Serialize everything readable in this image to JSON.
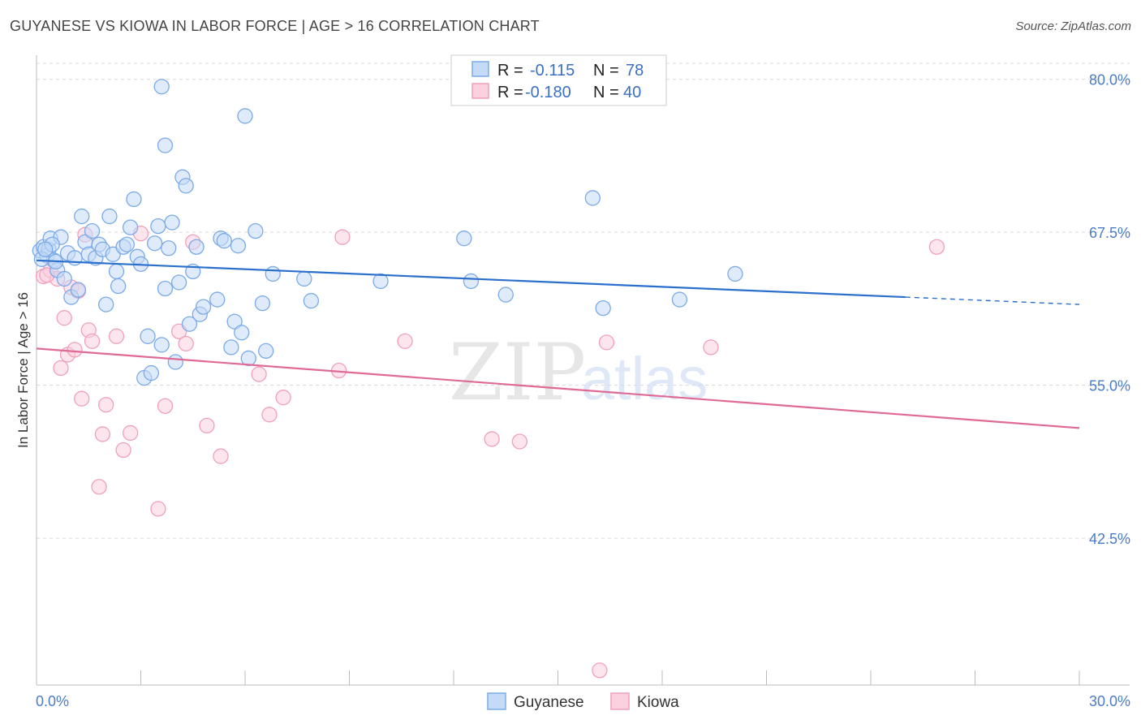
{
  "header": {
    "title": "GUYANESE VS KIOWA IN LABOR FORCE | AGE > 16 CORRELATION CHART",
    "source": "Source: ZipAtlas.com"
  },
  "watermark": {
    "zip": "ZIP",
    "atlas": "atlas"
  },
  "legend": {
    "rows": [
      {
        "r_label": "R =",
        "r_value": "-0.115",
        "n_label": "N =",
        "n_value": "78"
      },
      {
        "r_label": "R =",
        "r_value": "-0.180",
        "n_label": "N =",
        "n_value": "40"
      }
    ]
  },
  "chart_data": {
    "type": "scatter",
    "xlabel": "",
    "ylabel": "In Labor Force | Age > 16",
    "xlim": [
      0,
      30
    ],
    "ylim": [
      30.5,
      82.5
    ],
    "x_tick_labels": [
      "0.0%",
      "30.0%"
    ],
    "y_ticks": [
      42.5,
      55.0,
      67.5,
      80.0
    ],
    "y_tick_labels": [
      "42.5%",
      "55.0%",
      "67.5%",
      "80.0%"
    ],
    "grid": true,
    "colors": {
      "Guyanese": "#7aaae8",
      "Kiowa": "#f0a0bb",
      "guyanese_line": "#2a6fcc",
      "kiowa_line": "#e06a96"
    },
    "series": [
      {
        "name": "Guyanese",
        "trend": {
          "x0": 0,
          "y0": 65.2,
          "x1": 25,
          "y1": 62.2,
          "x_dash_end": 30,
          "y_dash_end": 61.6
        },
        "points": [
          [
            0.1,
            66.0
          ],
          [
            0.2,
            66.3
          ],
          [
            0.3,
            65.6
          ],
          [
            0.35,
            66.1
          ],
          [
            0.4,
            67.0
          ],
          [
            0.5,
            65.2
          ],
          [
            0.6,
            64.4
          ],
          [
            0.7,
            67.1
          ],
          [
            0.8,
            63.7
          ],
          [
            0.9,
            65.8
          ],
          [
            1.0,
            62.2
          ],
          [
            1.1,
            65.4
          ],
          [
            1.2,
            62.8
          ],
          [
            1.3,
            68.8
          ],
          [
            1.4,
            66.7
          ],
          [
            1.5,
            65.7
          ],
          [
            1.6,
            67.6
          ],
          [
            1.7,
            65.4
          ],
          [
            1.8,
            66.5
          ],
          [
            1.9,
            66.1
          ],
          [
            2.0,
            61.6
          ],
          [
            2.1,
            68.8
          ],
          [
            2.2,
            65.7
          ],
          [
            2.3,
            64.3
          ],
          [
            2.35,
            63.1
          ],
          [
            2.5,
            66.3
          ],
          [
            2.6,
            66.5
          ],
          [
            2.7,
            67.9
          ],
          [
            2.8,
            70.2
          ],
          [
            2.9,
            65.5
          ],
          [
            3.0,
            64.9
          ],
          [
            3.1,
            55.6
          ],
          [
            3.2,
            59.0
          ],
          [
            3.3,
            56.0
          ],
          [
            3.4,
            66.6
          ],
          [
            3.5,
            68.0
          ],
          [
            3.6,
            58.3
          ],
          [
            3.7,
            62.9
          ],
          [
            3.8,
            66.2
          ],
          [
            3.9,
            68.3
          ],
          [
            3.6,
            79.4
          ],
          [
            3.7,
            74.6
          ],
          [
            4.0,
            56.9
          ],
          [
            4.1,
            63.4
          ],
          [
            4.2,
            72.0
          ],
          [
            4.3,
            71.3
          ],
          [
            4.4,
            60.0
          ],
          [
            4.5,
            64.3
          ],
          [
            4.6,
            66.3
          ],
          [
            4.7,
            60.8
          ],
          [
            4.8,
            61.4
          ],
          [
            5.2,
            62.0
          ],
          [
            5.3,
            67.0
          ],
          [
            5.4,
            66.8
          ],
          [
            5.6,
            58.1
          ],
          [
            5.7,
            60.2
          ],
          [
            5.8,
            66.4
          ],
          [
            5.9,
            59.3
          ],
          [
            6.0,
            77.0
          ],
          [
            6.1,
            57.2
          ],
          [
            6.3,
            67.6
          ],
          [
            6.5,
            61.7
          ],
          [
            6.6,
            57.8
          ],
          [
            6.8,
            64.1
          ],
          [
            7.7,
            63.7
          ],
          [
            7.9,
            61.9
          ],
          [
            9.9,
            63.5
          ],
          [
            12.3,
            67.0
          ],
          [
            12.5,
            63.5
          ],
          [
            13.5,
            62.4
          ],
          [
            16.0,
            70.3
          ],
          [
            16.3,
            61.3
          ],
          [
            18.5,
            62.0
          ],
          [
            20.1,
            64.1
          ],
          [
            0.15,
            65.3
          ],
          [
            0.45,
            66.5
          ],
          [
            0.55,
            65.1
          ],
          [
            0.25,
            66.1
          ]
        ]
      },
      {
        "name": "Kiowa",
        "trend": {
          "x0": 0,
          "y0": 58.0,
          "x1": 30,
          "y1": 51.5
        },
        "points": [
          [
            0.2,
            63.9
          ],
          [
            0.4,
            64.4
          ],
          [
            0.6,
            63.7
          ],
          [
            0.7,
            56.4
          ],
          [
            0.8,
            60.5
          ],
          [
            0.9,
            57.5
          ],
          [
            1.0,
            63.0
          ],
          [
            1.1,
            57.9
          ],
          [
            1.2,
            62.7
          ],
          [
            1.3,
            53.9
          ],
          [
            1.4,
            67.3
          ],
          [
            1.5,
            59.5
          ],
          [
            1.6,
            58.6
          ],
          [
            1.8,
            46.7
          ],
          [
            1.9,
            51.0
          ],
          [
            2.0,
            53.4
          ],
          [
            2.3,
            59.0
          ],
          [
            2.5,
            49.7
          ],
          [
            2.7,
            51.1
          ],
          [
            3.0,
            67.4
          ],
          [
            3.5,
            44.9
          ],
          [
            3.7,
            53.3
          ],
          [
            4.1,
            59.4
          ],
          [
            4.3,
            58.4
          ],
          [
            4.5,
            66.7
          ],
          [
            4.9,
            51.7
          ],
          [
            5.3,
            49.2
          ],
          [
            6.4,
            55.9
          ],
          [
            6.7,
            52.6
          ],
          [
            7.1,
            54.0
          ],
          [
            8.7,
            56.2
          ],
          [
            8.8,
            67.1
          ],
          [
            10.6,
            58.6
          ],
          [
            13.1,
            50.6
          ],
          [
            13.9,
            50.4
          ],
          [
            16.4,
            58.5
          ],
          [
            16.2,
            31.7
          ],
          [
            19.4,
            58.1
          ],
          [
            25.9,
            66.3
          ],
          [
            0.3,
            64.0
          ]
        ]
      }
    ]
  },
  "bottom_legend": {
    "items": [
      "Guyanese",
      "Kiowa"
    ]
  }
}
